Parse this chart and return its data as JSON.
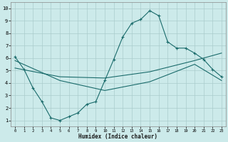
{
  "xlabel": "Humidex (Indice chaleur)",
  "background_color": "#cceaea",
  "line_color": "#1a6b6b",
  "grid_color": "#aacccc",
  "xlim": [
    -0.5,
    23.5
  ],
  "ylim": [
    0.5,
    10.5
  ],
  "xticks": [
    0,
    1,
    2,
    3,
    4,
    5,
    6,
    7,
    8,
    9,
    10,
    11,
    12,
    13,
    14,
    15,
    16,
    17,
    18,
    19,
    20,
    21,
    22,
    23
  ],
  "yticks": [
    1,
    2,
    3,
    4,
    5,
    6,
    7,
    8,
    9,
    10
  ],
  "line1_x": [
    0,
    1,
    2,
    3,
    4,
    5,
    6,
    7,
    8,
    9,
    10,
    11,
    12,
    13,
    14,
    15,
    16,
    17,
    18,
    19,
    20,
    21,
    22,
    23
  ],
  "line1_y": [
    6.1,
    5.1,
    3.6,
    2.5,
    1.2,
    1.0,
    1.3,
    1.6,
    2.3,
    2.5,
    4.2,
    5.9,
    7.7,
    8.8,
    9.1,
    9.8,
    9.4,
    7.3,
    6.8,
    6.8,
    6.4,
    5.9,
    5.1,
    4.5
  ],
  "line2_x": [
    0,
    5,
    10,
    15,
    20,
    23
  ],
  "line2_y": [
    5.2,
    4.5,
    4.4,
    4.9,
    5.8,
    6.4
  ],
  "line3_x": [
    0,
    5,
    10,
    15,
    20,
    23
  ],
  "line3_y": [
    5.8,
    4.2,
    3.4,
    4.1,
    5.5,
    4.2
  ]
}
